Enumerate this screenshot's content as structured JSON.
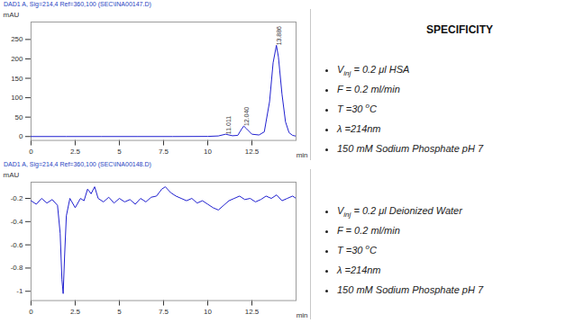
{
  "slide_title": "SPECIFICITY",
  "conditions": [
    [
      [
        {
          "text": "V"
        },
        {
          "text": "inj",
          "style": "sub"
        },
        {
          "text": " = 0.2 μl  HSA"
        }
      ],
      [
        {
          "text": "F = 0.2 ml/min"
        }
      ],
      [
        {
          "text": "T =30 "
        },
        {
          "text": "o",
          "style": "sup"
        },
        {
          "text": "C"
        }
      ],
      [
        {
          "text": "λ =214nm"
        }
      ],
      [
        {
          "text": "150 mM Sodium Phosphate pH 7"
        }
      ]
    ],
    [
      [
        {
          "text": "V"
        },
        {
          "text": "inj",
          "style": "sub"
        },
        {
          "text": " = 0.2 μl Deionized Water"
        }
      ],
      [
        {
          "text": "F = 0.2 ml/min"
        }
      ],
      [
        {
          "text": "T =30 "
        },
        {
          "text": "o",
          "style": "sup"
        },
        {
          "text": "C"
        }
      ],
      [
        {
          "text": "λ =214nm"
        }
      ],
      [
        {
          "text": "150 mM Sodium Phosphate pH 7"
        }
      ]
    ]
  ],
  "chart_data": [
    {
      "type": "line",
      "title": "DAD1 A, Sig=214,4 Ref=360,100 (SEC\\INA00147.D)",
      "x_label": "min",
      "y_label": "mAU",
      "x": [
        0,
        2,
        4,
        6,
        8,
        10,
        10.6,
        11.011,
        11.4,
        11.7,
        11.9,
        12.04,
        12.2,
        12.5,
        12.9,
        13.2,
        13.5,
        13.7,
        13.886,
        14.0,
        14.2,
        14.4,
        14.6,
        14.8,
        15
      ],
      "values": [
        0,
        0,
        0,
        0,
        0,
        0.3,
        1.5,
        6,
        2,
        3,
        18,
        27,
        20,
        6,
        4,
        12,
        90,
        190,
        235,
        205,
        110,
        38,
        10,
        3,
        1
      ],
      "color": "#1f1fcf",
      "xlim": [
        0,
        15
      ],
      "xticks": [
        0,
        2.5,
        5,
        7.5,
        10,
        12.5
      ],
      "ylim": [
        -10,
        295
      ],
      "yticks": [
        0,
        50,
        100,
        150,
        200,
        250
      ],
      "annotations": [
        {
          "x": 11.011,
          "y": 6,
          "text": "11.011"
        },
        {
          "x": 12.04,
          "y": 27,
          "text": "12.040"
        },
        {
          "x": 13.886,
          "y": 235,
          "text": "13.886"
        }
      ]
    },
    {
      "type": "line",
      "title": "DAD1 A, Sig=214,4 Ref=360,100 (SEC\\INA00148.D)",
      "x_label": "min",
      "y_label": "mAU",
      "x": [
        0,
        0.3,
        0.6,
        0.9,
        1.2,
        1.5,
        1.65,
        1.75,
        1.82,
        1.9,
        2.0,
        2.2,
        2.5,
        2.8,
        3.0,
        3.2,
        3.4,
        3.6,
        3.8,
        4.1,
        4.4,
        4.7,
        5.0,
        5.3,
        5.6,
        5.9,
        6.2,
        6.5,
        6.8,
        7.1,
        7.4,
        7.6,
        7.9,
        8.2,
        8.5,
        8.8,
        9.1,
        9.4,
        9.7,
        10.0,
        10.3,
        10.6,
        10.9,
        11.2,
        11.5,
        11.8,
        12.1,
        12.4,
        12.7,
        13.0,
        13.3,
        13.6,
        13.9,
        14.2,
        14.5,
        14.8,
        15
      ],
      "values": [
        -0.22,
        -0.25,
        -0.2,
        -0.24,
        -0.21,
        -0.26,
        -0.5,
        -0.9,
        -1.02,
        -0.7,
        -0.35,
        -0.2,
        -0.28,
        -0.2,
        -0.22,
        -0.12,
        -0.16,
        -0.1,
        -0.2,
        -0.23,
        -0.19,
        -0.24,
        -0.2,
        -0.23,
        -0.21,
        -0.25,
        -0.2,
        -0.23,
        -0.19,
        -0.18,
        -0.12,
        -0.1,
        -0.15,
        -0.18,
        -0.2,
        -0.22,
        -0.2,
        -0.24,
        -0.22,
        -0.25,
        -0.28,
        -0.3,
        -0.26,
        -0.22,
        -0.2,
        -0.18,
        -0.21,
        -0.2,
        -0.23,
        -0.21,
        -0.18,
        -0.2,
        -0.17,
        -0.22,
        -0.2,
        -0.18,
        -0.2
      ],
      "color": "#1f1fcf",
      "xlim": [
        0,
        15
      ],
      "xticks": [
        0,
        2.5,
        5,
        7.5,
        10,
        12.5
      ],
      "ylim": [
        -1.08,
        -0.06
      ],
      "yticks": [
        -1,
        -0.8,
        -0.6,
        -0.4,
        -0.2
      ]
    }
  ]
}
